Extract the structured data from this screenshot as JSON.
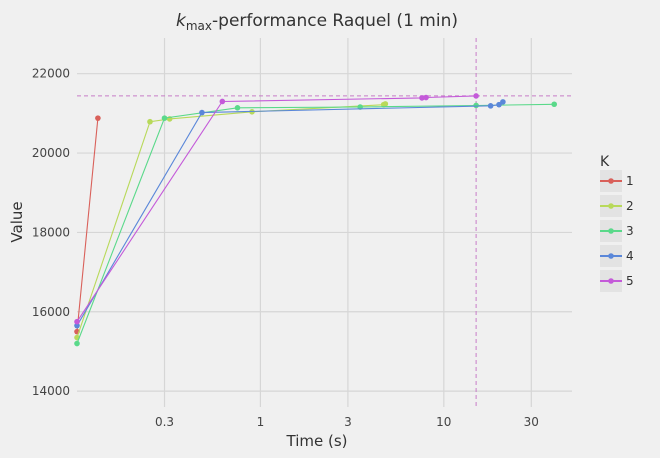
{
  "chart_data": {
    "type": "line",
    "title_base": "k",
    "title_sub": "max",
    "title_rest": "-performance Raquel (1 min)",
    "xlabel": "Time (s)",
    "ylabel": "Value",
    "x_scale": "log",
    "xlim": [
      0.1,
      50
    ],
    "ylim": [
      13600,
      22900
    ],
    "x_ticks": [
      0.3,
      1,
      3,
      10,
      30
    ],
    "x_tick_labels": [
      "0.3",
      "1",
      "3",
      "10",
      "30"
    ],
    "y_ticks": [
      14000,
      16000,
      18000,
      20000,
      22000
    ],
    "y_tick_labels": [
      "14000",
      "16000",
      "18000",
      "20000",
      "22000"
    ],
    "grid": true,
    "legend_title": "K",
    "legend_position": "right",
    "reference_lines": {
      "x": 15,
      "y": 21440,
      "color": "#c77cc7"
    },
    "series": [
      {
        "name": "1",
        "color": "#d9605a",
        "points": [
          [
            0.1,
            15500
          ],
          [
            0.13,
            20880
          ]
        ]
      },
      {
        "name": "2",
        "color": "#b8d95a",
        "points": [
          [
            0.1,
            15350
          ],
          [
            0.25,
            20790
          ],
          [
            0.32,
            20860
          ],
          [
            0.9,
            21040
          ],
          [
            4.7,
            21220
          ],
          [
            4.8,
            21240
          ]
        ]
      },
      {
        "name": "3",
        "color": "#5ad98a",
        "points": [
          [
            0.1,
            15200
          ],
          [
            0.3,
            20880
          ],
          [
            0.75,
            21140
          ],
          [
            3.5,
            21160
          ],
          [
            15,
            21200
          ],
          [
            40,
            21230
          ]
        ]
      },
      {
        "name": "4",
        "color": "#5a87d9",
        "points": [
          [
            0.1,
            15650
          ],
          [
            0.48,
            21020
          ],
          [
            18,
            21190
          ],
          [
            20,
            21220
          ],
          [
            21,
            21290
          ]
        ]
      },
      {
        "name": "5",
        "color": "#c45ad9",
        "points": [
          [
            0.1,
            15750
          ],
          [
            0.62,
            21300
          ],
          [
            7.6,
            21390
          ],
          [
            8,
            21400
          ],
          [
            15,
            21440
          ]
        ]
      }
    ]
  }
}
